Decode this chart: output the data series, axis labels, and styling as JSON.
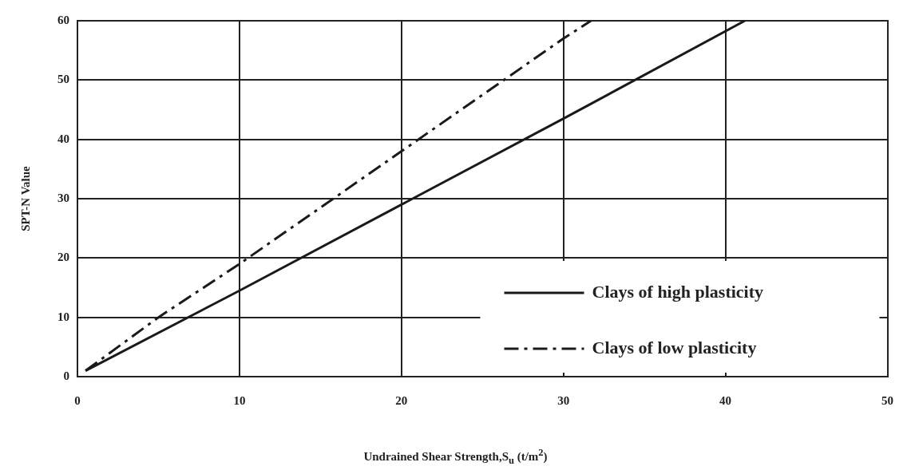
{
  "chart_data": {
    "type": "line",
    "xlabel": "Undrained Shear Strength,S$_{u}$ (t/m$^{2}$)",
    "ylabel": "SPT-N Value",
    "xlim": [
      0,
      50
    ],
    "xticks": [
      0,
      10,
      20,
      30,
      40,
      50
    ],
    "ylim": [
      0,
      60
    ],
    "yticks": [
      0,
      10,
      20,
      30,
      40,
      50,
      60
    ],
    "grid": true,
    "legend": "bottom right",
    "marker": "none",
    "series": [
      {
        "name": "Clays of high plasticity",
        "color": "#1a1a1a",
        "line_style": "solid",
        "x": [
          0.5,
          10,
          20,
          30,
          41.2
        ],
        "values": [
          1,
          14.5,
          29,
          43.5,
          60
        ]
      },
      {
        "name": "Clays of low plasticity",
        "color": "#1a1a1a",
        "line_style": "dashdot",
        "x": [
          0.5,
          5,
          10,
          20,
          30,
          31.7
        ],
        "values": [
          1,
          10,
          19,
          38,
          57,
          60
        ]
      }
    ]
  }
}
